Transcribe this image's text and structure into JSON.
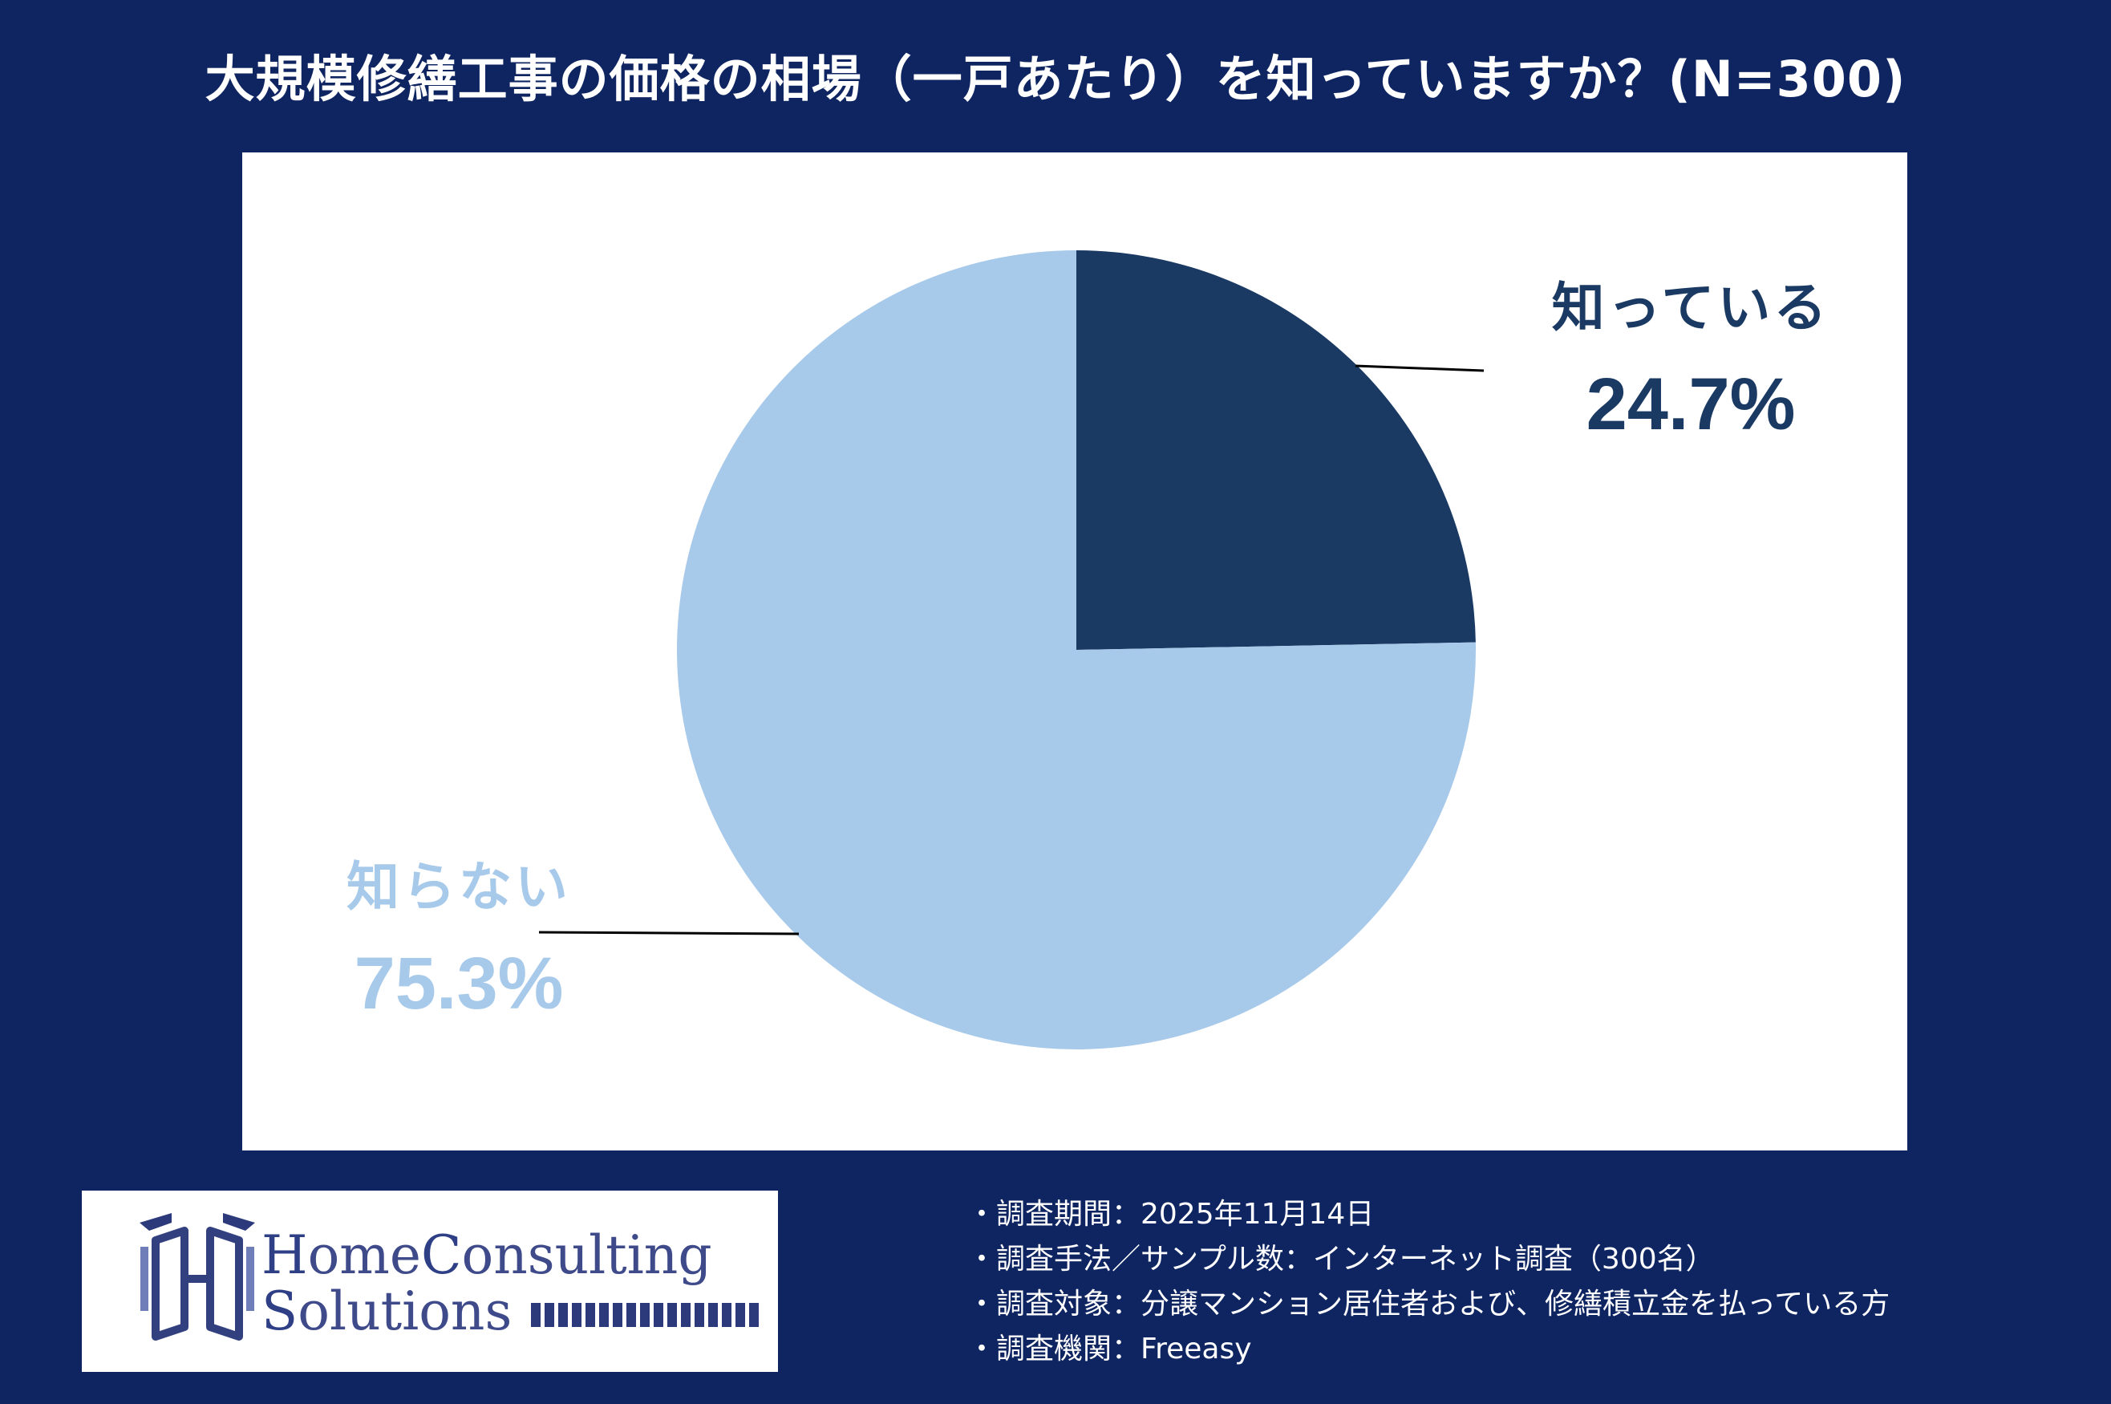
{
  "chart_data": {
    "type": "pie",
    "title": "大規模修繕工事の価格の相場（一戸あたり）を知っていますか？(N=300)",
    "slices": [
      {
        "label": "知っている",
        "value": 24.7,
        "value_label": "24.7%",
        "color": "#1a3a63"
      },
      {
        "label": "知らない",
        "value": 75.3,
        "value_label": "75.3%",
        "color": "#a7c9ea"
      }
    ],
    "start_angle": "12 o'clock",
    "direction": "clockwise"
  },
  "logo": {
    "line1_initial": "H",
    "line1_rest": "ome",
    "line1_initial2": "C",
    "line1_rest2": "onsulting",
    "line2_initial": "S",
    "line2_rest": "olutions"
  },
  "notes": [
    "・調査期間：2025年11月14日",
    "・調査手法／サンプル数：インターネット調査（300名）",
    "・調査対象：分譲マンション居住者および、修繕積立金を払っている方",
    "・調査機関：Freeasy"
  ],
  "colors": {
    "background": "#0f2561",
    "known": "#1a3a63",
    "unknown": "#a7c9ea"
  }
}
